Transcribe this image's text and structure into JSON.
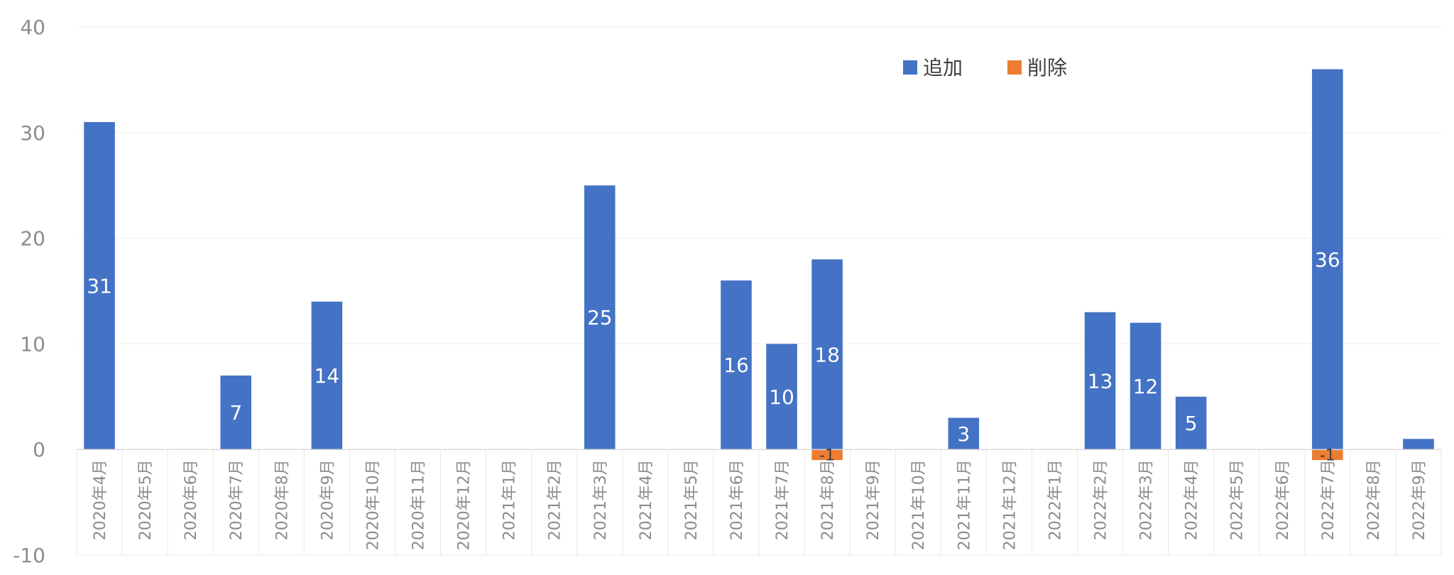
{
  "chart_data": {
    "type": "bar",
    "stacked": true,
    "categories": [
      "2020年4月",
      "2020年5月",
      "2020年6月",
      "2020年7月",
      "2020年8月",
      "2020年9月",
      "2020年10月",
      "2020年11月",
      "2020年12月",
      "2021年1月",
      "2021年2月",
      "2021年3月",
      "2021年4月",
      "2021年5月",
      "2021年6月",
      "2021年7月",
      "2021年8月",
      "2021年9月",
      "2021年10月",
      "2021年11月",
      "2021年12月",
      "2022年1月",
      "2022年2月",
      "2022年3月",
      "2022年4月",
      "2022年5月",
      "2022年6月",
      "2022年7月",
      "2022年8月",
      "2022年9月"
    ],
    "series": [
      {
        "name": "追加",
        "color": "#4472c4",
        "values": [
          31,
          0,
          0,
          7,
          0,
          14,
          0,
          0,
          0,
          0,
          0,
          25,
          0,
          0,
          16,
          10,
          18,
          0,
          0,
          3,
          0,
          0,
          13,
          12,
          5,
          0,
          0,
          36,
          0,
          1
        ]
      },
      {
        "name": "削除",
        "color": "#ed7d31",
        "values": [
          0,
          0,
          0,
          0,
          0,
          0,
          0,
          0,
          0,
          0,
          0,
          0,
          0,
          0,
          0,
          0,
          -1,
          0,
          0,
          0,
          0,
          0,
          0,
          0,
          0,
          0,
          0,
          -1,
          0,
          0
        ]
      }
    ],
    "data_labels": [
      {
        "category": "2020年4月",
        "series": "追加",
        "text": "31"
      },
      {
        "category": "2020年7月",
        "series": "追加",
        "text": "7"
      },
      {
        "category": "2020年9月",
        "series": "追加",
        "text": "14"
      },
      {
        "category": "2021年3月",
        "series": "追加",
        "text": "25"
      },
      {
        "category": "2021年6月",
        "series": "追加",
        "text": "16"
      },
      {
        "category": "2021年7月",
        "series": "追加",
        "text": "10"
      },
      {
        "category": "2021年8月",
        "series": "追加",
        "text": "18"
      },
      {
        "category": "2021年8月",
        "series": "削除",
        "text": "-1"
      },
      {
        "category": "2021年11月",
        "series": "追加",
        "text": "3"
      },
      {
        "category": "2022年2月",
        "series": "追加",
        "text": "13"
      },
      {
        "category": "2022年3月",
        "series": "追加",
        "text": "12"
      },
      {
        "category": "2022年4月",
        "series": "追加",
        "text": "5"
      },
      {
        "category": "2022年7月",
        "series": "追加",
        "text": "36"
      },
      {
        "category": "2022年7月",
        "series": "削除",
        "text": "-1"
      }
    ],
    "yticks": [
      "-10",
      "0",
      "10",
      "20",
      "30",
      "40"
    ],
    "ylim": [
      -10,
      40
    ],
    "grid": true,
    "legend_position": "top-right",
    "title": "",
    "xlabel": "",
    "ylabel": ""
  }
}
